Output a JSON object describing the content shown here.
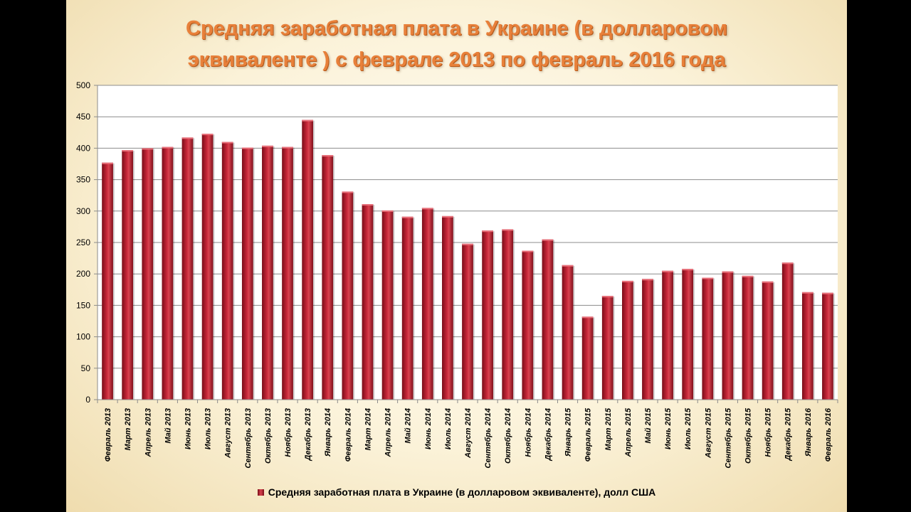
{
  "chart_data": {
    "type": "bar",
    "title_line1": "Средняя заработная плата в Украине (в долларовом",
    "title_line2": "эквиваленте ) с феврале 2013 по февраль 2016 года",
    "ylim": [
      0,
      500
    ],
    "yticks": [
      0,
      50,
      100,
      150,
      200,
      250,
      300,
      350,
      400,
      450,
      500
    ],
    "grid": true,
    "legend_position": "bottom",
    "bar_color": "#a8162a",
    "series": [
      {
        "name": "Средняя заработная плата в Украине (в долларовом эквиваленте), долл США",
        "values": [
          377,
          397,
          400,
          402,
          417,
          423,
          410,
          401,
          404,
          402,
          445,
          389,
          331,
          311,
          301,
          291,
          305,
          292,
          248,
          269,
          271,
          237,
          255,
          214,
          132,
          165,
          189,
          192,
          205,
          208,
          194,
          204,
          197,
          188,
          218,
          171,
          170
        ]
      }
    ],
    "categories": [
      "Февраль 2013",
      "Март 2013",
      "Апрель 2013",
      "Май 2013",
      "Июнь 2013",
      "Июль 2013",
      "Август 2013",
      "Сентябрь 2013",
      "Октябрь 2013",
      "Ноябрь 2013",
      "Декабрь 2013",
      "Январь 2014",
      "Февраль 2014",
      "Март 2014",
      "Апрель 2014",
      "Май 2014",
      "Июнь 2014",
      "Июль 2014",
      "Август 2014",
      "Сентябрь 2014",
      "Октябрь 2014",
      "Ноябрь 2014",
      "Декабрь 2014",
      "Январь 2015",
      "Февраль 2015",
      "Март 2015",
      "Апрель 2015",
      "Май 2015",
      "Июнь 2015",
      "Июль 2015",
      "Август 2015",
      "Сентябрь 2015",
      "Октябрь 2015",
      "Ноябрь 2015",
      "Декабрь 2015",
      "Январь 2016",
      "Февраль 2016"
    ]
  }
}
